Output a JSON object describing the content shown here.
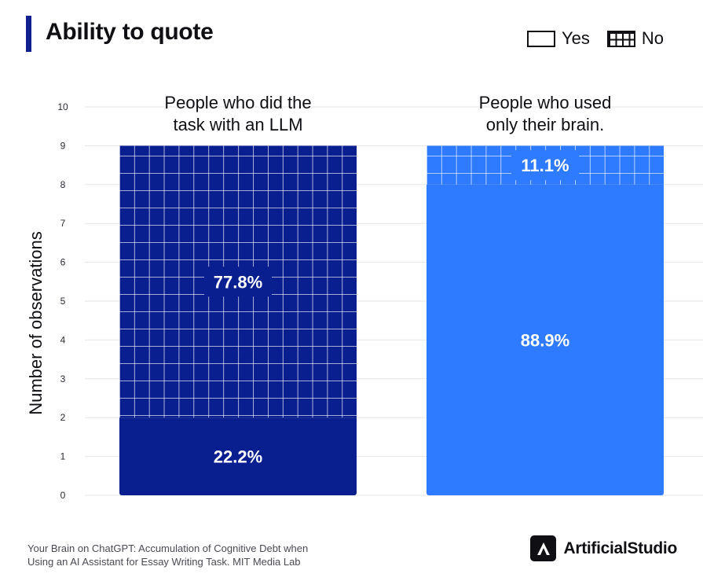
{
  "title": "Ability to quote",
  "legend": {
    "yes_label": "Yes",
    "no_label": "No"
  },
  "chart_data": {
    "type": "bar",
    "stacked": true,
    "title": "Ability to quote",
    "ylabel": "Number of observations",
    "xlabel": "",
    "ylim": [
      0,
      10
    ],
    "yticks": [
      0,
      1,
      2,
      3,
      4,
      5,
      6,
      7,
      8,
      9,
      10
    ],
    "grid": true,
    "legend_position": "top-right",
    "categories": [
      "People who did the task with an LLM",
      "People who used only their brain."
    ],
    "category_lines": [
      [
        "People who did the",
        "task with an LLM"
      ],
      [
        "People who used",
        "only their brain."
      ]
    ],
    "series": [
      {
        "name": "Yes",
        "values": [
          2,
          8
        ],
        "labels": [
          "22.2%",
          "88.9%"
        ],
        "pattern": "solid"
      },
      {
        "name": "No",
        "values": [
          7,
          1
        ],
        "labels": [
          "77.8%",
          "11.1%"
        ],
        "pattern": "grid"
      }
    ],
    "colors": [
      "#0a1f8f",
      "#2f7bff"
    ]
  },
  "footer": {
    "source_line1": "Your Brain on ChatGPT: Accumulation of Cognitive Debt when",
    "source_line2": "Using an AI Assistant for Essay Writing Task. MIT Media Lab",
    "brand_name": "ArtificialStudio",
    "brand_icon": "artificialstudio-logo-icon"
  }
}
